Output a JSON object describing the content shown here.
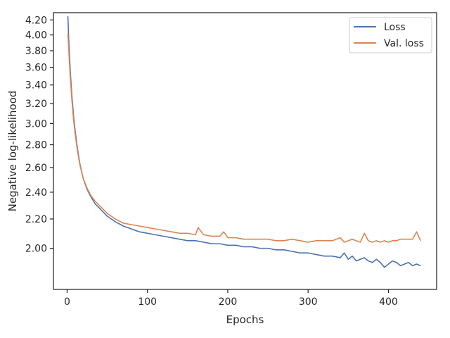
{
  "chart_data": {
    "type": "line",
    "title": "",
    "xlabel": "Epochs",
    "ylabel": "Negative log-likelihood",
    "xlim": [
      -17,
      460
    ],
    "ylim": [
      1.75,
      4.3
    ],
    "y_scale": "log",
    "xticks": [
      0,
      100,
      200,
      300,
      400
    ],
    "xtick_labels": [
      "0",
      "100",
      "200",
      "300",
      "400"
    ],
    "yticks": [
      2.0,
      2.2,
      2.4,
      2.6,
      2.8,
      3.0,
      3.2,
      3.4,
      3.6,
      3.8,
      4.0,
      4.2
    ],
    "ytick_labels": [
      "2.00",
      "2.20",
      "2.40",
      "2.60",
      "2.80",
      "3.00",
      "3.20",
      "3.40",
      "3.60",
      "3.80",
      "4.00",
      "4.20"
    ],
    "grid": false,
    "legend_position": "top-right",
    "series": [
      {
        "name": "Loss",
        "color": "#4c72b0",
        "x": [
          1,
          2,
          4,
          6,
          8,
          10,
          13,
          16,
          20,
          25,
          30,
          35,
          40,
          50,
          60,
          70,
          80,
          90,
          100,
          110,
          120,
          130,
          140,
          150,
          160,
          170,
          180,
          190,
          200,
          210,
          220,
          230,
          240,
          250,
          260,
          270,
          280,
          290,
          300,
          310,
          320,
          330,
          340,
          345,
          350,
          355,
          360,
          365,
          370,
          375,
          380,
          385,
          390,
          395,
          400,
          405,
          410,
          415,
          420,
          425,
          430,
          435,
          440
        ],
        "y": [
          4.25,
          3.95,
          3.55,
          3.28,
          3.08,
          2.93,
          2.76,
          2.63,
          2.51,
          2.42,
          2.36,
          2.31,
          2.28,
          2.22,
          2.18,
          2.15,
          2.13,
          2.11,
          2.1,
          2.09,
          2.08,
          2.07,
          2.06,
          2.05,
          2.05,
          2.04,
          2.03,
          2.03,
          2.02,
          2.02,
          2.01,
          2.01,
          2.0,
          2.0,
          1.99,
          1.99,
          1.98,
          1.97,
          1.97,
          1.96,
          1.95,
          1.95,
          1.94,
          1.97,
          1.93,
          1.95,
          1.92,
          1.93,
          1.94,
          1.92,
          1.91,
          1.93,
          1.91,
          1.88,
          1.9,
          1.92,
          1.91,
          1.89,
          1.9,
          1.91,
          1.89,
          1.9,
          1.89
        ]
      },
      {
        "name": "Val. loss",
        "color": "#dd8452",
        "x": [
          1,
          2,
          4,
          6,
          8,
          10,
          13,
          16,
          20,
          25,
          30,
          35,
          40,
          50,
          60,
          70,
          80,
          90,
          100,
          110,
          120,
          130,
          140,
          150,
          160,
          163,
          170,
          180,
          190,
          195,
          200,
          210,
          220,
          230,
          240,
          250,
          260,
          270,
          280,
          290,
          300,
          310,
          320,
          330,
          340,
          345,
          350,
          355,
          360,
          365,
          370,
          375,
          380,
          385,
          390,
          395,
          400,
          405,
          410,
          415,
          420,
          425,
          430,
          435,
          440
        ],
        "y": [
          4.02,
          3.82,
          3.48,
          3.23,
          3.04,
          2.9,
          2.74,
          2.62,
          2.51,
          2.43,
          2.37,
          2.33,
          2.3,
          2.24,
          2.2,
          2.17,
          2.16,
          2.15,
          2.14,
          2.13,
          2.12,
          2.11,
          2.1,
          2.1,
          2.09,
          2.14,
          2.09,
          2.08,
          2.08,
          2.11,
          2.07,
          2.07,
          2.06,
          2.06,
          2.06,
          2.06,
          2.05,
          2.05,
          2.06,
          2.05,
          2.04,
          2.05,
          2.05,
          2.05,
          2.07,
          2.04,
          2.05,
          2.06,
          2.05,
          2.04,
          2.1,
          2.05,
          2.04,
          2.05,
          2.04,
          2.05,
          2.04,
          2.05,
          2.05,
          2.06,
          2.06,
          2.06,
          2.06,
          2.11,
          2.05
        ]
      }
    ]
  }
}
